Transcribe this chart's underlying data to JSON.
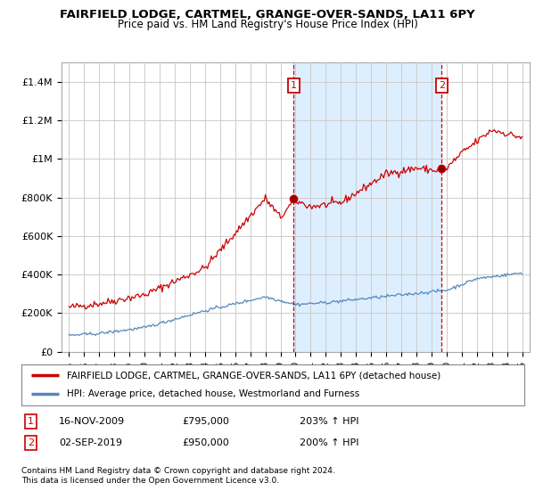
{
  "title1": "FAIRFIELD LODGE, CARTMEL, GRANGE-OVER-SANDS, LA11 6PY",
  "title2": "Price paid vs. HM Land Registry's House Price Index (HPI)",
  "legend_line1": "FAIRFIELD LODGE, CARTMEL, GRANGE-OVER-SANDS, LA11 6PY (detached house)",
  "legend_line2": "HPI: Average price, detached house, Westmorland and Furness",
  "footnote1": "Contains HM Land Registry data © Crown copyright and database right 2024.",
  "footnote2": "This data is licensed under the Open Government Licence v3.0.",
  "sale1_label": "1",
  "sale1_date": "16-NOV-2009",
  "sale1_price": "£795,000",
  "sale1_hpi": "203% ↑ HPI",
  "sale2_label": "2",
  "sale2_date": "02-SEP-2019",
  "sale2_price": "£950,000",
  "sale2_hpi": "200% ↑ HPI",
  "sale1_x": 2009.88,
  "sale1_y": 795000,
  "sale2_x": 2019.67,
  "sale2_y": 950000,
  "red_line_color": "#cc0000",
  "blue_line_color": "#5588bb",
  "vline_color": "#cc0000",
  "shade_color": "#ddeeff",
  "background_color": "#ffffff",
  "grid_color": "#cccccc",
  "ylim_min": 0,
  "ylim_max": 1500000,
  "xlim_min": 1994.5,
  "xlim_max": 2025.5,
  "yticks": [
    0,
    200000,
    400000,
    600000,
    800000,
    1000000,
    1200000,
    1400000
  ],
  "ytick_labels": [
    "£0",
    "£200K",
    "£400K",
    "£600K",
    "£800K",
    "£1M",
    "£1.2M",
    "£1.4M"
  ],
  "xtick_years": [
    1995,
    1996,
    1997,
    1998,
    1999,
    2000,
    2001,
    2002,
    2003,
    2004,
    2005,
    2006,
    2007,
    2008,
    2009,
    2010,
    2011,
    2012,
    2013,
    2014,
    2015,
    2016,
    2017,
    2018,
    2019,
    2020,
    2021,
    2022,
    2023,
    2024,
    2025
  ]
}
